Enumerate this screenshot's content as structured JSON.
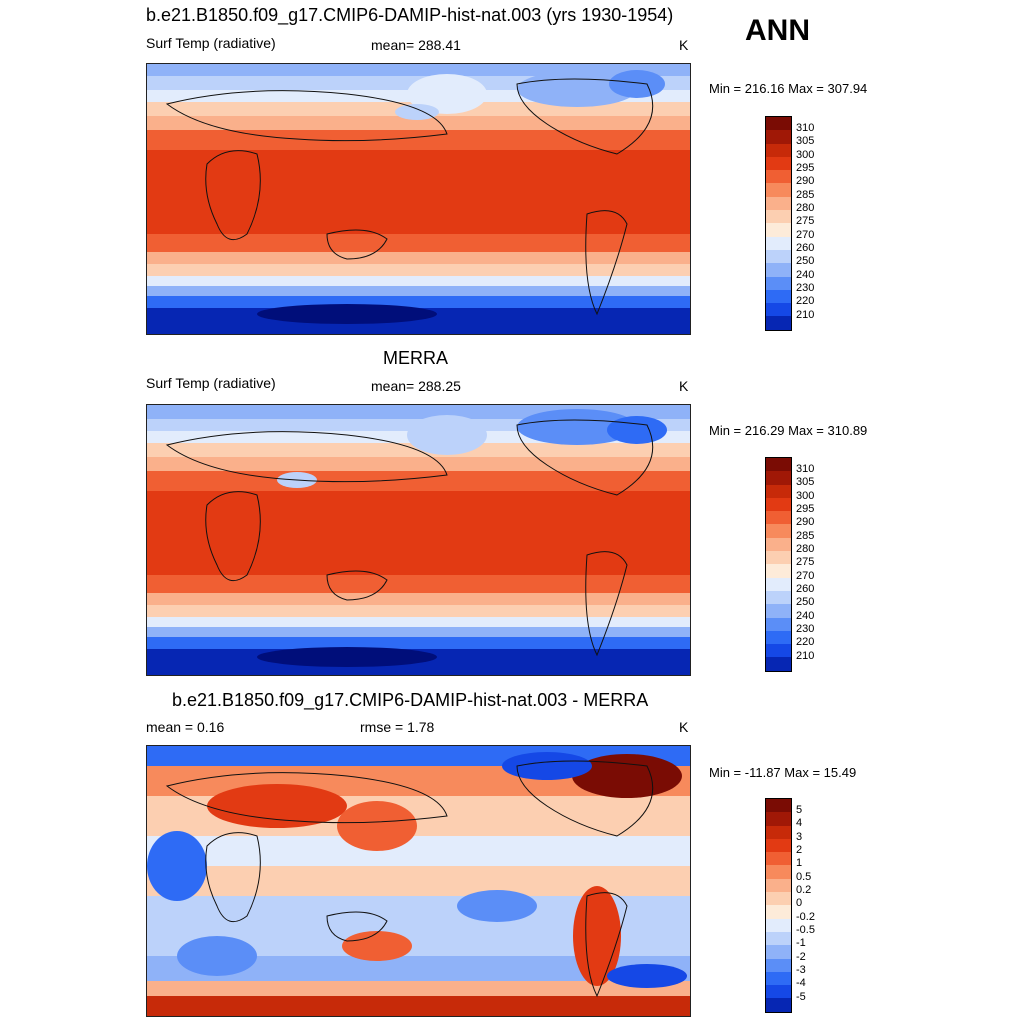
{
  "season": "ANN",
  "colors": {
    "abs": [
      "#000e7a",
      "#0626b3",
      "#1548e6",
      "#2e6bf5",
      "#5b8ef7",
      "#8fb2f8",
      "#bcd2fa",
      "#e2ecfc",
      "#fdebd9",
      "#fccfb1",
      "#fab08b",
      "#f78a5c",
      "#f05f33",
      "#e23a13",
      "#c72a09",
      "#a01806",
      "#7a0c04"
    ],
    "diff": [
      "#000e7a",
      "#0626b3",
      "#1548e6",
      "#2e6bf5",
      "#5b8ef7",
      "#8fb2f8",
      "#bcd2fa",
      "#e2ecfc",
      "#fdebd9",
      "#fccfb1",
      "#fab08b",
      "#f78a5c",
      "#f05f33",
      "#e23a13",
      "#c72a09",
      "#a01806",
      "#7a0c04"
    ]
  },
  "panels": [
    {
      "title": "b.e21.B1850.f09_g17.CMIP6-DAMIP-hist-nat.003 (yrs 1930-1954)",
      "left_label": "Surf Temp (radiative)",
      "center_label": "mean= 288.41",
      "units": "K",
      "minmax": "Min = 216.16 Max = 307.94",
      "levels": [
        "310",
        "305",
        "300",
        "295",
        "290",
        "285",
        "280",
        "275",
        "270",
        "260",
        "250",
        "240",
        "230",
        "220",
        "210"
      ]
    },
    {
      "title": "MERRA",
      "left_label": "Surf Temp (radiative)",
      "center_label": "mean= 288.25",
      "units": "K",
      "minmax": "Min = 216.29 Max = 310.89",
      "levels": [
        "310",
        "305",
        "300",
        "295",
        "290",
        "285",
        "280",
        "275",
        "270",
        "260",
        "250",
        "240",
        "230",
        "220",
        "210"
      ]
    },
    {
      "title": "b.e21.B1850.f09_g17.CMIP6-DAMIP-hist-nat.003 - MERRA",
      "left_label": "mean =   0.16",
      "center_label": "rmse =   1.78",
      "units": "K",
      "minmax": "Min = -11.87 Max =  15.49",
      "levels": [
        "5",
        "4",
        "3",
        "2",
        "1",
        "0.5",
        "0.2",
        "0",
        "-0.2",
        "-0.5",
        "-1",
        "-2",
        "-3",
        "-4",
        "-5"
      ]
    }
  ]
}
